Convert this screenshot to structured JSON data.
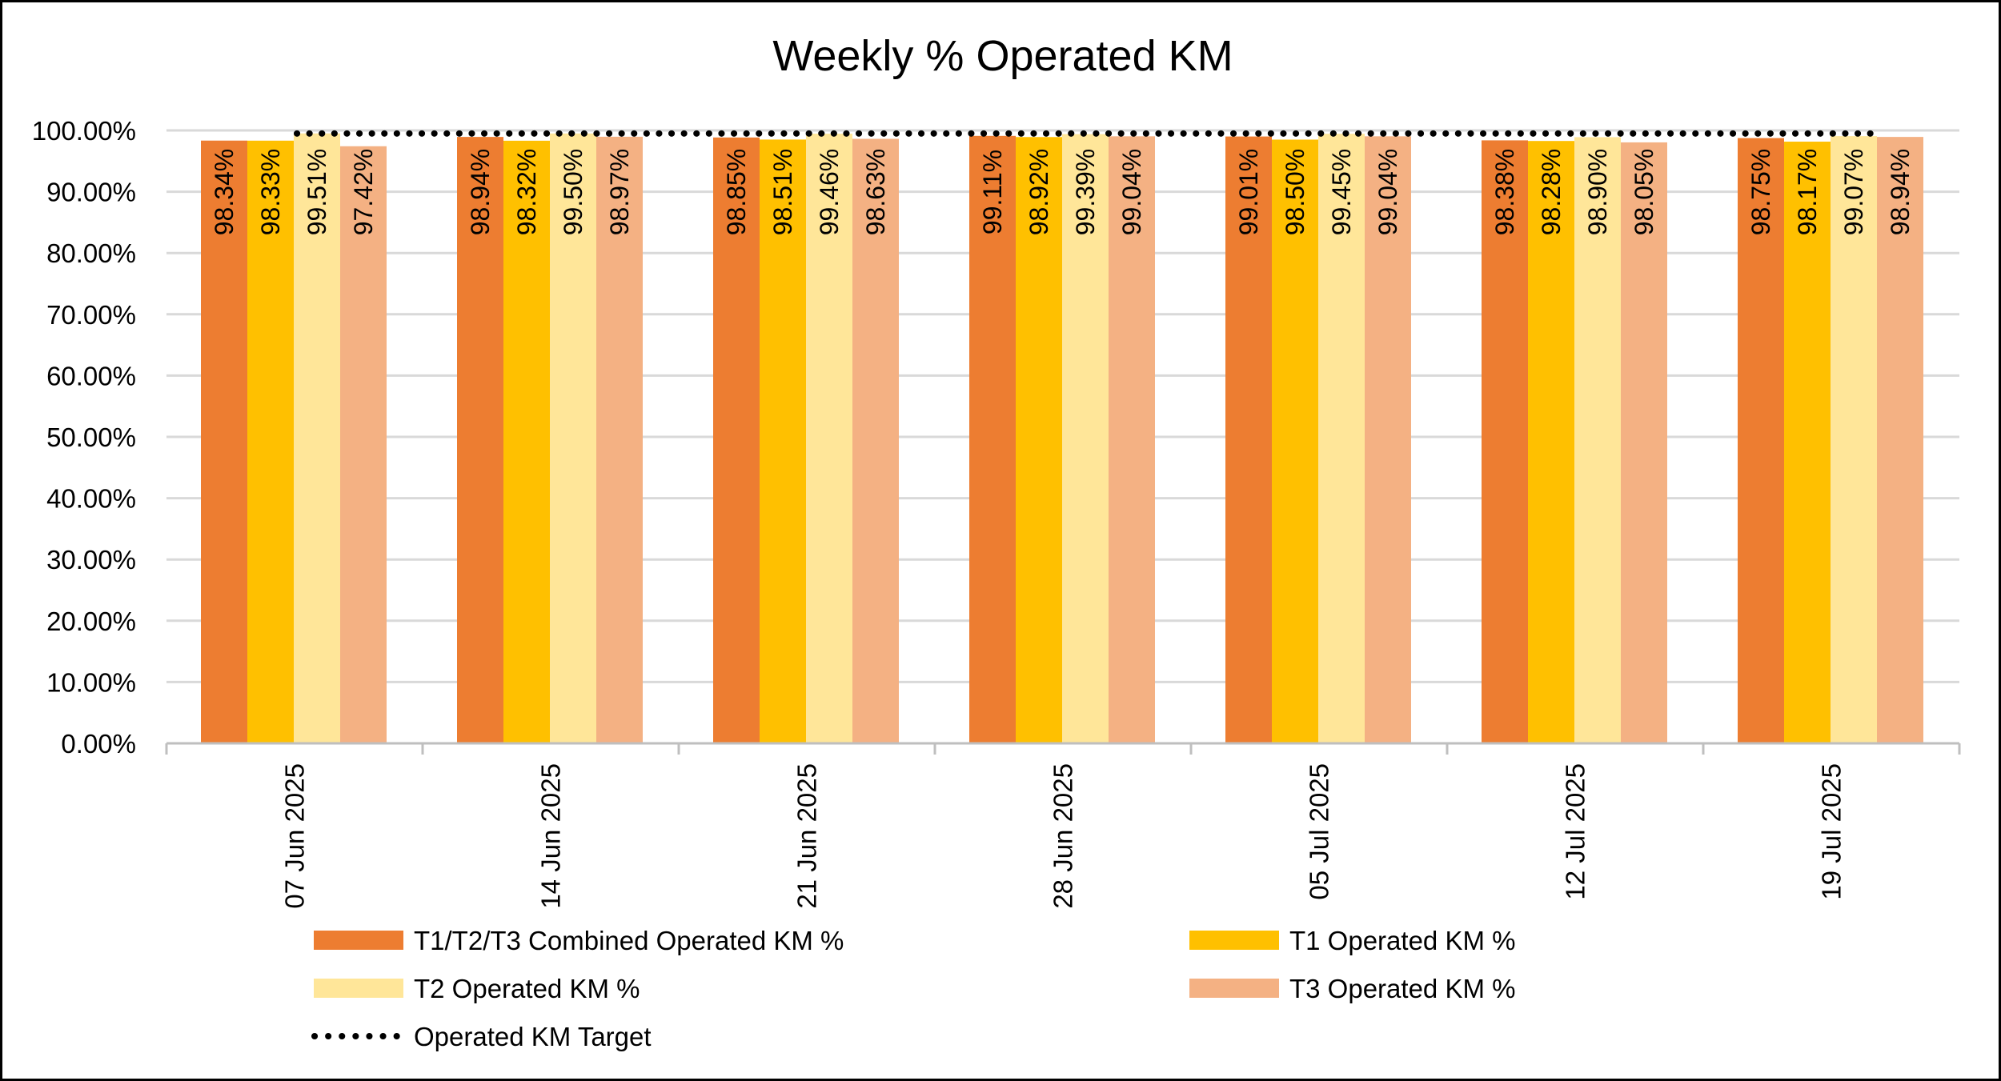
{
  "chart_data": {
    "type": "bar",
    "title": "Weekly % Operated KM",
    "xlabel": "",
    "ylabel": "",
    "ylim": [
      0,
      100
    ],
    "ytick_step": 10,
    "ytick_labels": [
      "0.00%",
      "10.00%",
      "20.00%",
      "30.00%",
      "40.00%",
      "50.00%",
      "60.00%",
      "70.00%",
      "80.00%",
      "90.00%",
      "100.00%"
    ],
    "grid": true,
    "legend_position": "bottom",
    "categories": [
      "07 Jun 2025",
      "14 Jun 2025",
      "21 Jun 2025",
      "28 Jun 2025",
      "05 Jul 2025",
      "12 Jul 2025",
      "19 Jul 2025"
    ],
    "series": [
      {
        "name": "T1/T2/T3 Combined Operated KM %",
        "color": "#ED7D31",
        "values": [
          98.34,
          98.94,
          98.85,
          99.11,
          99.01,
          98.38,
          98.75
        ],
        "labels": [
          "98.34%",
          "98.94%",
          "98.85%",
          "99.11%",
          "99.01%",
          "98.38%",
          "98.75%"
        ]
      },
      {
        "name": "T1 Operated KM %",
        "color": "#FFC000",
        "values": [
          98.33,
          98.32,
          98.51,
          98.92,
          98.5,
          98.28,
          98.17
        ],
        "labels": [
          "98.33%",
          "98.32%",
          "98.51%",
          "98.92%",
          "98.50%",
          "98.28%",
          "98.17%"
        ]
      },
      {
        "name": "T2 Operated KM %",
        "color": "#FFE699",
        "values": [
          99.51,
          99.5,
          99.46,
          99.39,
          99.45,
          98.9,
          99.07
        ],
        "labels": [
          "99.51%",
          "99.50%",
          "99.46%",
          "99.39%",
          "99.45%",
          "98.90%",
          "99.07%"
        ]
      },
      {
        "name": "T3 Operated KM %",
        "color": "#F4B183",
        "values": [
          97.42,
          98.97,
          98.63,
          99.04,
          99.04,
          98.05,
          98.94
        ],
        "labels": [
          "97.42%",
          "98.97%",
          "98.63%",
          "99.04%",
          "99.04%",
          "98.05%",
          "98.94%"
        ]
      }
    ],
    "target": {
      "name": "Operated KM Target",
      "color": "#000000",
      "values": [
        99.5,
        99.5,
        99.5,
        99.5,
        99.5,
        99.5,
        99.5
      ]
    }
  }
}
